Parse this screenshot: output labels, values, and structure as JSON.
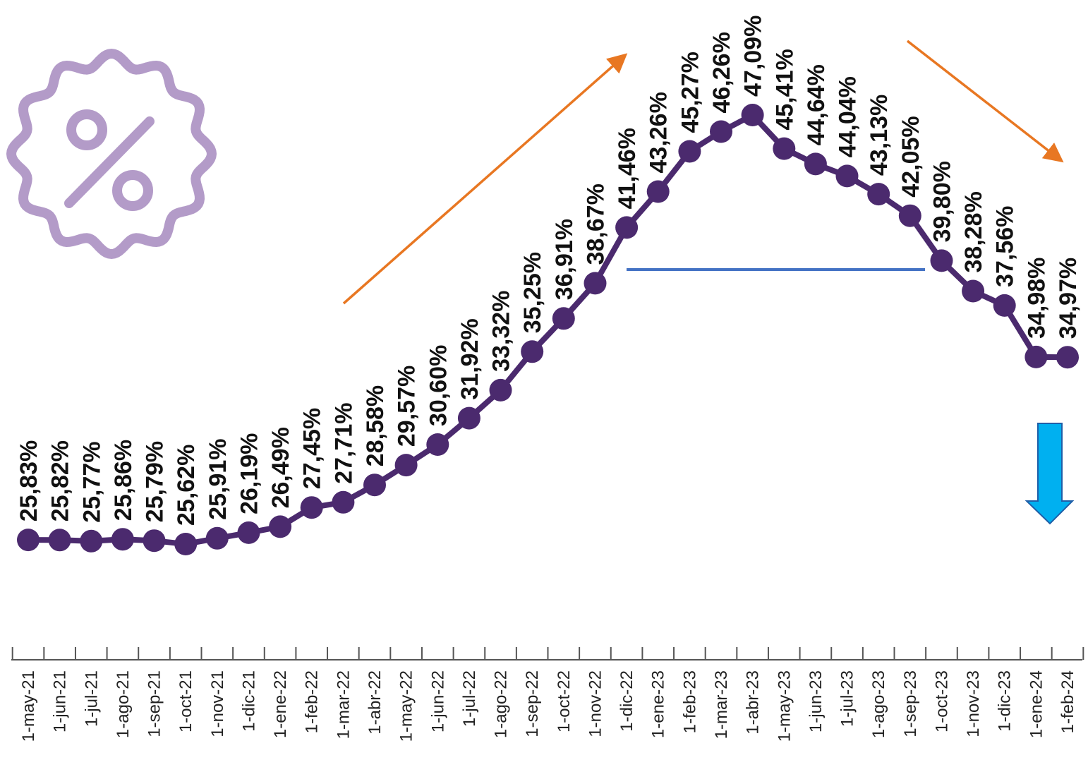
{
  "chart_data": {
    "type": "line",
    "categories": [
      "1-may-21",
      "1-jun-21",
      "1-jul-21",
      "1-ago-21",
      "1-sep-21",
      "1-oct-21",
      "1-nov-21",
      "1-dic-21",
      "1-ene-22",
      "1-feb-22",
      "1-mar-22",
      "1-abr-22",
      "1-may-22",
      "1-jun-22",
      "1-jul-22",
      "1-ago-22",
      "1-sep-22",
      "1-oct-22",
      "1-nov-22",
      "1-dic-22",
      "1-ene-23",
      "1-feb-23",
      "1-mar-23",
      "1-abr-23",
      "1-may-23",
      "1-jun-23",
      "1-jul-23",
      "1-ago-23",
      "1-sep-23",
      "1-oct-23",
      "1-nov-23",
      "1-dic-23",
      "1-ene-24",
      "1-feb-24"
    ],
    "values": [
      25.83,
      25.82,
      25.77,
      25.86,
      25.79,
      25.62,
      25.91,
      26.19,
      26.49,
      27.45,
      27.71,
      28.58,
      29.57,
      30.6,
      31.92,
      33.32,
      35.25,
      36.91,
      38.67,
      41.46,
      43.26,
      45.27,
      46.26,
      47.09,
      45.41,
      44.64,
      44.04,
      43.13,
      42.05,
      39.8,
      38.28,
      37.56,
      34.98,
      34.97
    ],
    "data_labels": [
      "25,83%",
      "25,82%",
      "25,77%",
      "25,86%",
      "25,79%",
      "25,62%",
      "25,91%",
      "26,19%",
      "26,49%",
      "27,45%",
      "27,71%",
      "28,58%",
      "29,57%",
      "30,60%",
      "31,92%",
      "33,32%",
      "35,25%",
      "36,91%",
      "38,67%",
      "41,46%",
      "43,26%",
      "45,27%",
      "46,26%",
      "47,09%",
      "45,41%",
      "44,64%",
      "44,04%",
      "43,13%",
      "42,05%",
      "39,80%",
      "38,28%",
      "37,56%",
      "34,98%",
      "34,97%"
    ],
    "title": "",
    "xlabel": "",
    "ylabel": "",
    "ylim": [
      25,
      48
    ],
    "grid": false,
    "legend": "none",
    "colors": {
      "series": "#4b2a6e",
      "trend_up_arrow": "#e87722",
      "trend_down_arrow": "#e87722",
      "reference_line": "#4472c4",
      "down_indicator": "#00b0f0",
      "badge_icon": "#b39bc8",
      "axis": "#555555"
    },
    "decorations": {
      "icon": "percent-badge-icon",
      "indicator": "down-arrow-icon"
    }
  }
}
